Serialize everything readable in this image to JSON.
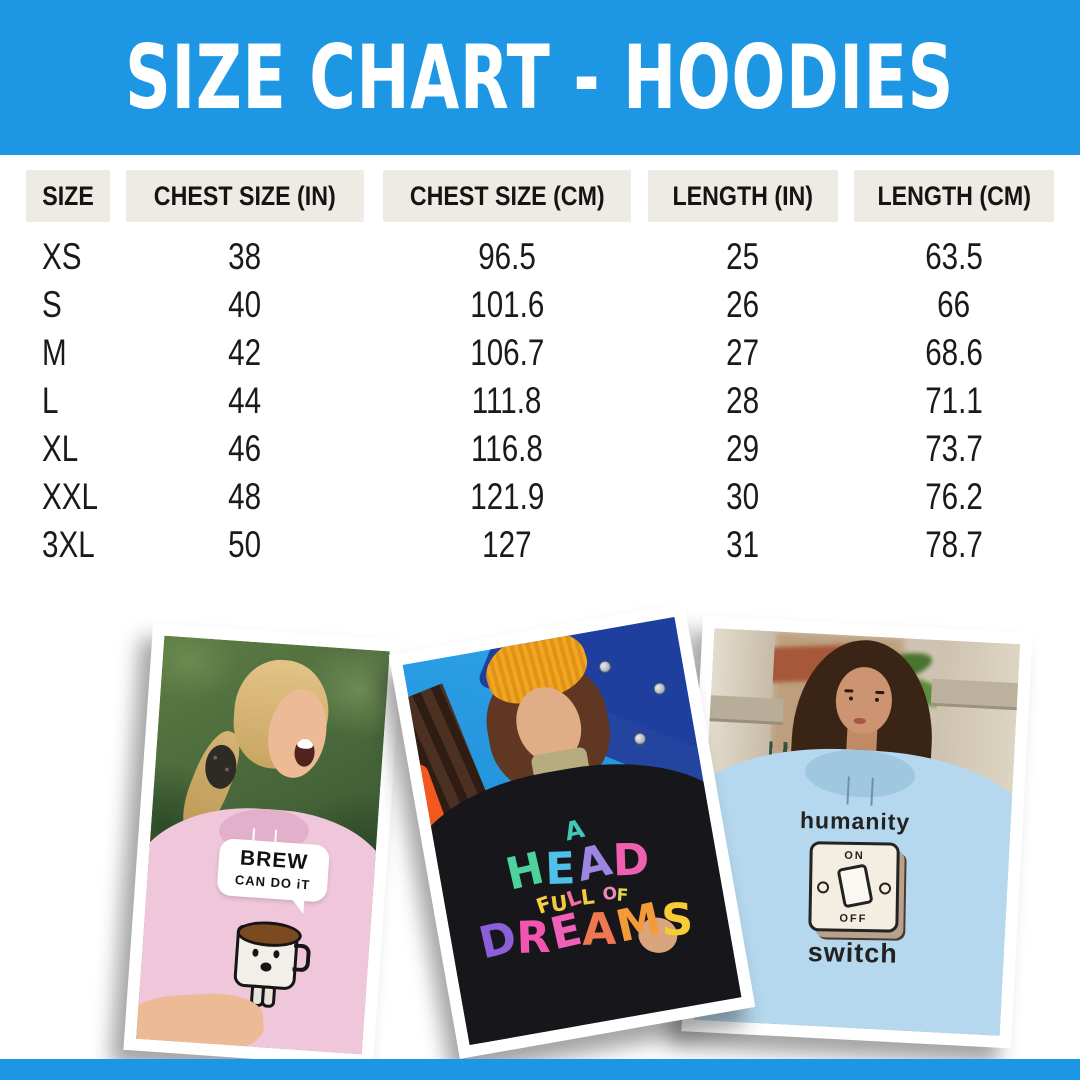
{
  "banner": {
    "title": "SIZE CHART - HOODIES",
    "bg_color": "#1d97e4"
  },
  "chart_data": {
    "type": "table",
    "title": "SIZE CHART - HOODIES",
    "columns": [
      "SIZE",
      "CHEST SIZE (IN)",
      "CHEST SIZE (CM)",
      "LENGTH (IN)",
      "LENGTH (CM)"
    ],
    "rows": [
      [
        "XS",
        "38",
        "96.5",
        "25",
        "63.5"
      ],
      [
        "S",
        "40",
        "101.6",
        "26",
        "66"
      ],
      [
        "M",
        "42",
        "106.7",
        "27",
        "68.6"
      ],
      [
        "L",
        "44",
        "111.8",
        "28",
        "71.1"
      ],
      [
        "XL",
        "46",
        "116.8",
        "29",
        "73.7"
      ],
      [
        "XXL",
        "48",
        "121.9",
        "30",
        "76.2"
      ],
      [
        "3XL",
        "50",
        "127",
        "31",
        "78.7"
      ]
    ]
  },
  "photos": {
    "pink_hoodie": {
      "bubble_line1": "BREW",
      "bubble_line2": "CAN DO iT",
      "hoodie_color": "#efc6da"
    },
    "black_hoodie": {
      "word1": {
        "text": "A",
        "colors": [
          "#3fc9b4"
        ]
      },
      "word2": {
        "text": "HEAD",
        "colors": [
          "#4ed29b",
          "#4fc0e8",
          "#9d85e0",
          "#f05fb0"
        ]
      },
      "word3": {
        "text": "FULL",
        "colors": [
          "#f6d23f",
          "#f3c83d",
          "#ef6f9f",
          "#f5c93e"
        ]
      },
      "word4": {
        "text": "OF",
        "colors": [
          "#f286bb",
          "#e3d84a"
        ]
      },
      "word5": {
        "text": "DREAMS",
        "colors": [
          "#8a5fd8",
          "#f055b0",
          "#f060b8",
          "#f07850",
          "#f59a38",
          "#f7cc35"
        ]
      },
      "hoodie_color": "#17171b"
    },
    "blue_hoodie": {
      "line1": "humanity",
      "switch_on": "ON",
      "switch_off": "OFF",
      "line2": "switch",
      "hoodie_color": "#b5d8ee"
    }
  },
  "colors": {
    "banner_blue": "#1d97e4",
    "header_cell_bg": "#edebe4",
    "table_text": "#1a1a1a"
  }
}
